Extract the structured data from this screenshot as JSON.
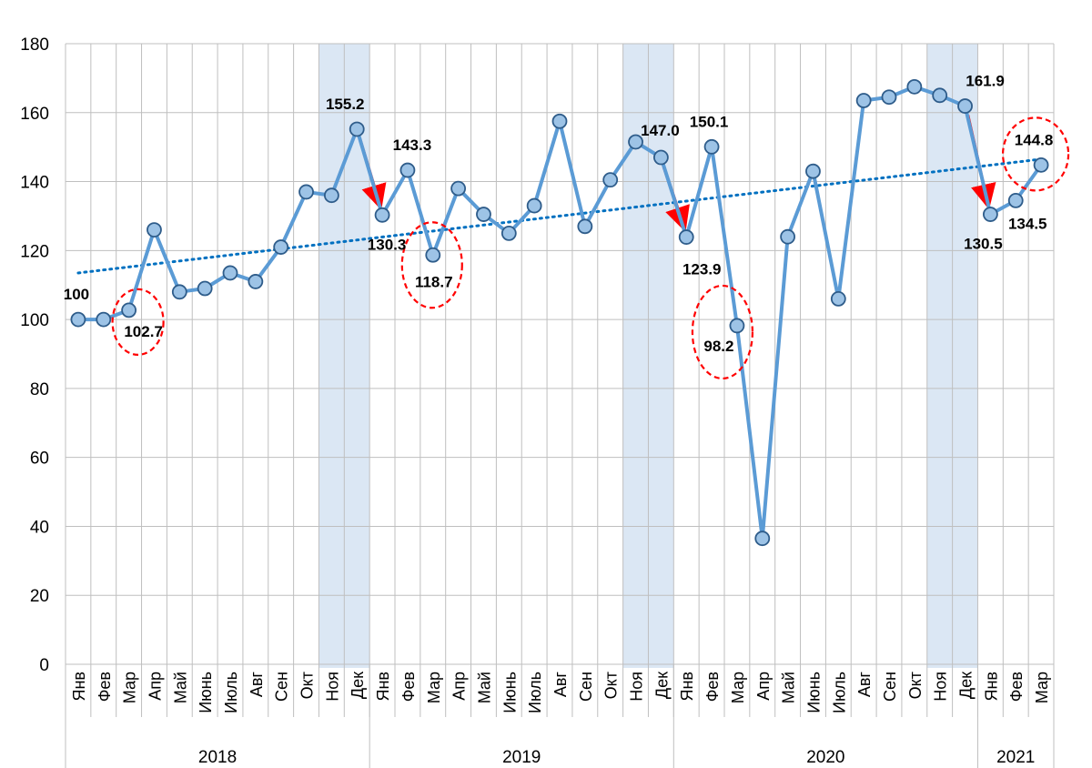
{
  "chart_data": {
    "type": "line",
    "title": "",
    "xlabel": "",
    "ylabel": "",
    "ylim": [
      0,
      180
    ],
    "yticks": [
      "0",
      "20",
      "40",
      "60",
      "80",
      "100",
      "120",
      "140",
      "160",
      "180"
    ],
    "grid": true,
    "categories": [
      "Янв",
      "Фев",
      "Мар",
      "Апр",
      "Май",
      "Июнь",
      "Июль",
      "Авг",
      "Сен",
      "Окт",
      "Ноя",
      "Дек",
      "Янв",
      "Фев",
      "Мар",
      "Апр",
      "Май",
      "Июнь",
      "Июль",
      "Авг",
      "Сен",
      "Окт",
      "Ноя",
      "Дек",
      "Янв",
      "Фев",
      "Мар",
      "Апр",
      "Май",
      "Июнь",
      "Июль",
      "Авг",
      "Сен",
      "Окт",
      "Ноя",
      "Дек",
      "Янв",
      "Фев",
      "Мар"
    ],
    "years": [
      {
        "label": "2018",
        "start": 0,
        "end": 11
      },
      {
        "label": "2019",
        "start": 12,
        "end": 23
      },
      {
        "label": "2020",
        "start": 24,
        "end": 35
      },
      {
        "label": "2021",
        "start": 36,
        "end": 38
      }
    ],
    "series": [
      {
        "color": "#5b9bd5",
        "marker_fill": "#9dc3e6",
        "marker_stroke": "#2e5c8a",
        "values": [
          100,
          100,
          102.7,
          126,
          108,
          109,
          113.5,
          111,
          121,
          137,
          136,
          155.2,
          130.3,
          143.3,
          118.7,
          138,
          130.5,
          125,
          133,
          157.5,
          127,
          140.5,
          151.5,
          147.0,
          123.9,
          150.1,
          98.2,
          36.5,
          124,
          143,
          106,
          163.5,
          164.5,
          167.5,
          165,
          161.9,
          130.5,
          134.5,
          144.8
        ]
      }
    ],
    "trendline": {
      "style": "dotted",
      "color": "#0070c0",
      "start": 113.5,
      "end": 146.5
    },
    "shaded_bands": [
      {
        "start": 9.5,
        "end": 11.5,
        "color": "#dbe7f4"
      },
      {
        "start": 21.5,
        "end": 23.5,
        "color": "#dbe7f4"
      },
      {
        "start": 33.5,
        "end": 35.5,
        "color": "#dbe7f4"
      }
    ],
    "data_labels": [
      {
        "index": 0,
        "text": "100"
      },
      {
        "index": 2,
        "text": "102.7"
      },
      {
        "index": 11,
        "text": "155.2"
      },
      {
        "index": 12,
        "text": "130.3"
      },
      {
        "index": 13,
        "text": "143.3"
      },
      {
        "index": 14,
        "text": "118.7"
      },
      {
        "index": 23,
        "text": "147.0"
      },
      {
        "index": 24,
        "text": "123.9"
      },
      {
        "index": 25,
        "text": "150.1"
      },
      {
        "index": 26,
        "text": "98.2"
      },
      {
        "index": 35,
        "text": "161.9"
      },
      {
        "index": 36,
        "text": "130.5"
      },
      {
        "index": 37,
        "text": "134.5"
      },
      {
        "index": 38,
        "text": "144.8"
      }
    ],
    "decline_arrows": [
      {
        "from": 11,
        "to": 12
      },
      {
        "from": 23,
        "to": 24
      },
      {
        "from": 35,
        "to": 36
      }
    ],
    "highlight_circles": [
      2,
      14,
      26,
      38
    ],
    "colors": {
      "arrow": "#ff0000",
      "circle": "#ff0000",
      "grid": "#bfbfbf"
    }
  }
}
